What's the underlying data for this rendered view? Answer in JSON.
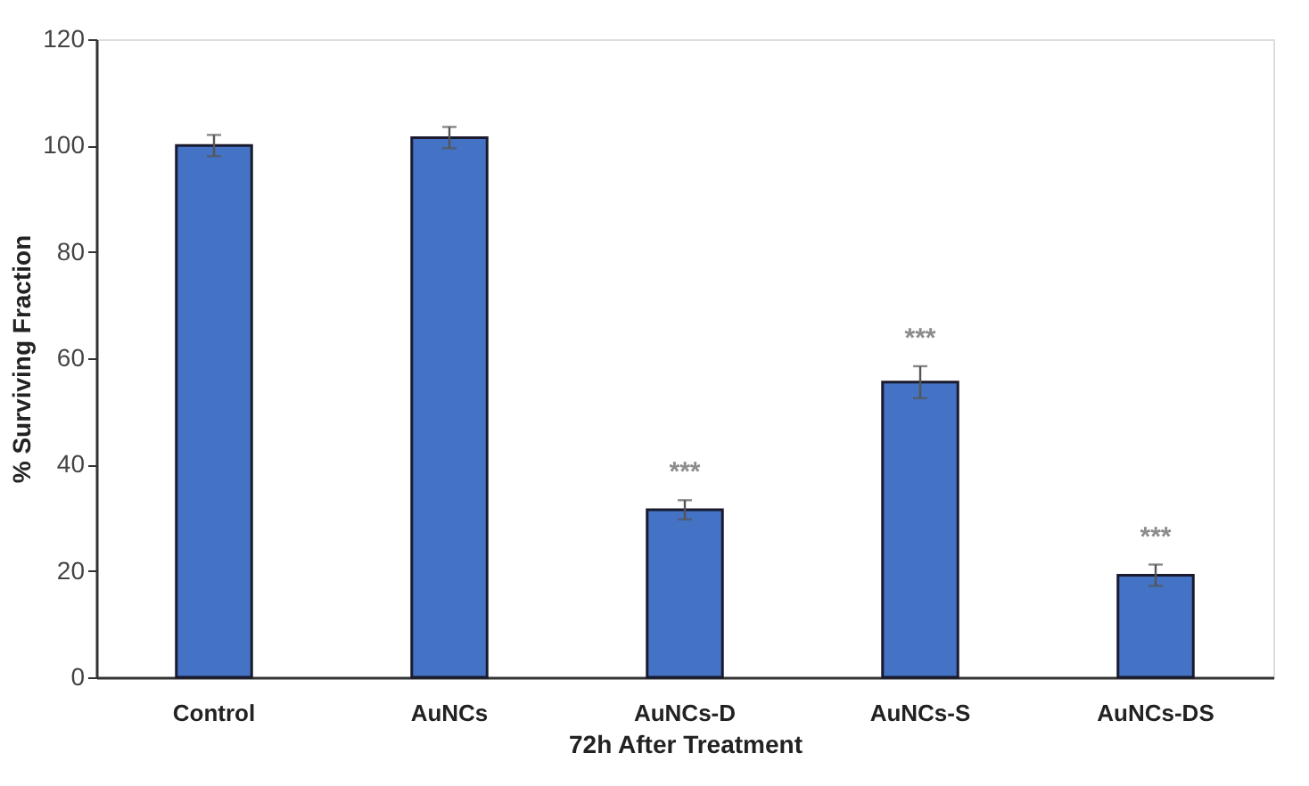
{
  "chart_data": {
    "type": "bar",
    "xlabel": "72h After Treatment",
    "ylabel": "% Surviving Fraction",
    "categories": [
      "Control",
      "AuNCs",
      "AuNCs-D",
      "AuNCs-S",
      "AuNCs-DS"
    ],
    "values": [
      100,
      101.5,
      31.5,
      55.5,
      19.2
    ],
    "errors": [
      2,
      2,
      1.8,
      3,
      2
    ],
    "color": "#4472c4",
    "ylim": [
      0,
      120
    ],
    "yticks": [
      0,
      20,
      40,
      60,
      80,
      100,
      120
    ],
    "grid": false,
    "value_labels": [
      null,
      null,
      "***",
      "***",
      "***"
    ]
  }
}
